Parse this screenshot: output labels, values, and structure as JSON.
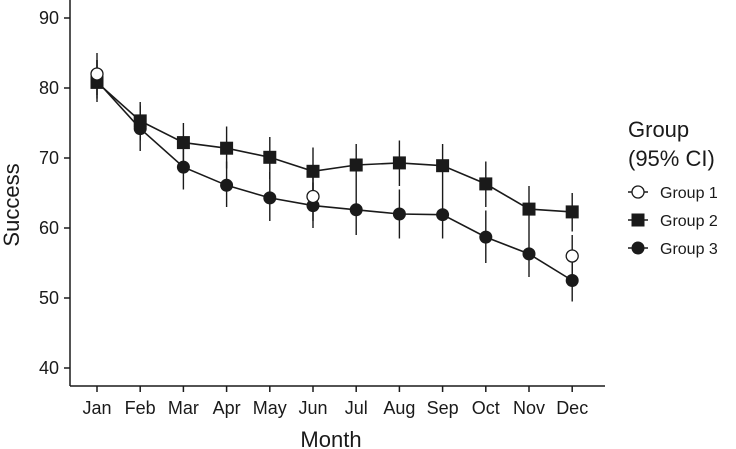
{
  "chart_data": {
    "type": "line",
    "title": "",
    "xlabel": "Month",
    "ylabel": "Success",
    "categories": [
      "Jan",
      "Feb",
      "Mar",
      "Apr",
      "May",
      "Jun",
      "Jul",
      "Aug",
      "Sep",
      "Oct",
      "Nov",
      "Dec"
    ],
    "x_positions": [
      1,
      2,
      3,
      4,
      5,
      6,
      7,
      8,
      9,
      10,
      11,
      12
    ],
    "ylim": [
      37,
      92
    ],
    "yticks": [
      40,
      50,
      60,
      70,
      80,
      90
    ],
    "grid": false,
    "legend": {
      "title_line1": "Group",
      "title_line2": "(95% CI)",
      "placement": "right"
    },
    "series": [
      {
        "name": "Group 1",
        "marker": "open-circle",
        "color": "#1a1a1a",
        "x": [
          1,
          6,
          12
        ],
        "values": [
          82,
          64.5,
          56
        ],
        "ci_low": [
          79,
          61,
          53
        ],
        "ci_high": [
          85,
          68,
          59
        ],
        "connected": false
      },
      {
        "name": "Group 2",
        "marker": "square",
        "color": "#1a1a1a",
        "x": [
          1,
          2,
          3,
          4,
          5,
          6,
          7,
          8,
          9,
          10,
          11,
          12
        ],
        "values": [
          80.8,
          75.3,
          72.2,
          71.4,
          70.1,
          68.1,
          69,
          69.3,
          68.9,
          66.3,
          62.7,
          62.3
        ],
        "ci_low": [
          78,
          72.5,
          69.5,
          68.5,
          67,
          65,
          66,
          66,
          65.5,
          63,
          59.5,
          59.5
        ],
        "ci_high": [
          84,
          78,
          75,
          74.5,
          73,
          71.5,
          72,
          72.5,
          72,
          69.5,
          66,
          65
        ],
        "connected": true
      },
      {
        "name": "Group 3",
        "marker": "filled-circle",
        "color": "#1a1a1a",
        "x": [
          1,
          2,
          3,
          4,
          5,
          6,
          7,
          8,
          9,
          10,
          11,
          12
        ],
        "values": [
          81,
          74.2,
          68.7,
          66.1,
          64.3,
          63.2,
          62.6,
          62,
          61.9,
          58.7,
          56.3,
          52.5
        ],
        "ci_low": [
          78.5,
          71,
          65.5,
          63,
          61,
          60,
          59,
          58.5,
          58.5,
          55,
          53,
          49.5
        ],
        "ci_high": [
          84,
          77.5,
          72,
          69.5,
          68,
          66.5,
          66,
          65.5,
          65.5,
          62.5,
          59.5,
          55.5
        ],
        "connected": true
      }
    ]
  }
}
